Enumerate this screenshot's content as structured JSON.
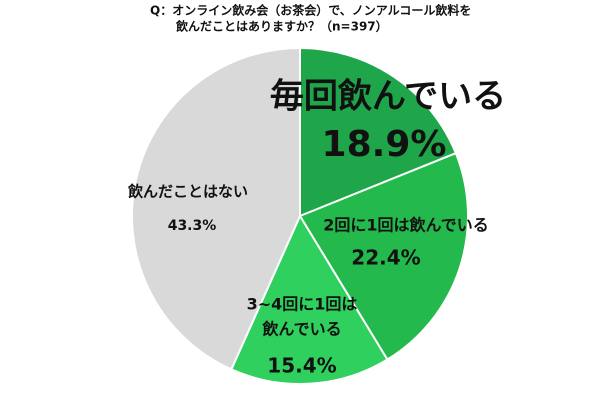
{
  "chart_data": {
    "type": "pie",
    "title": [
      "Q：オンライン飲み会（お茶会）で、ノンアルコール飲料を",
      "飲んだことはありますか？（n=397）"
    ],
    "categories": [
      "毎回飲んでいる",
      "2回に1回は飲んでいる",
      [
        "3~4回に1回は",
        "飲んでいる"
      ],
      "飲んだことはない"
    ],
    "values": [
      18.9,
      22.4,
      15.4,
      43.3
    ],
    "value_labels": [
      "18.9%",
      "22.4%",
      "15.4%",
      "43.3%"
    ],
    "colors": [
      "#1fa64a",
      "#23b94d",
      "#2fd05e",
      "#d9d9d9"
    ],
    "highlight_color": "#c00000"
  }
}
